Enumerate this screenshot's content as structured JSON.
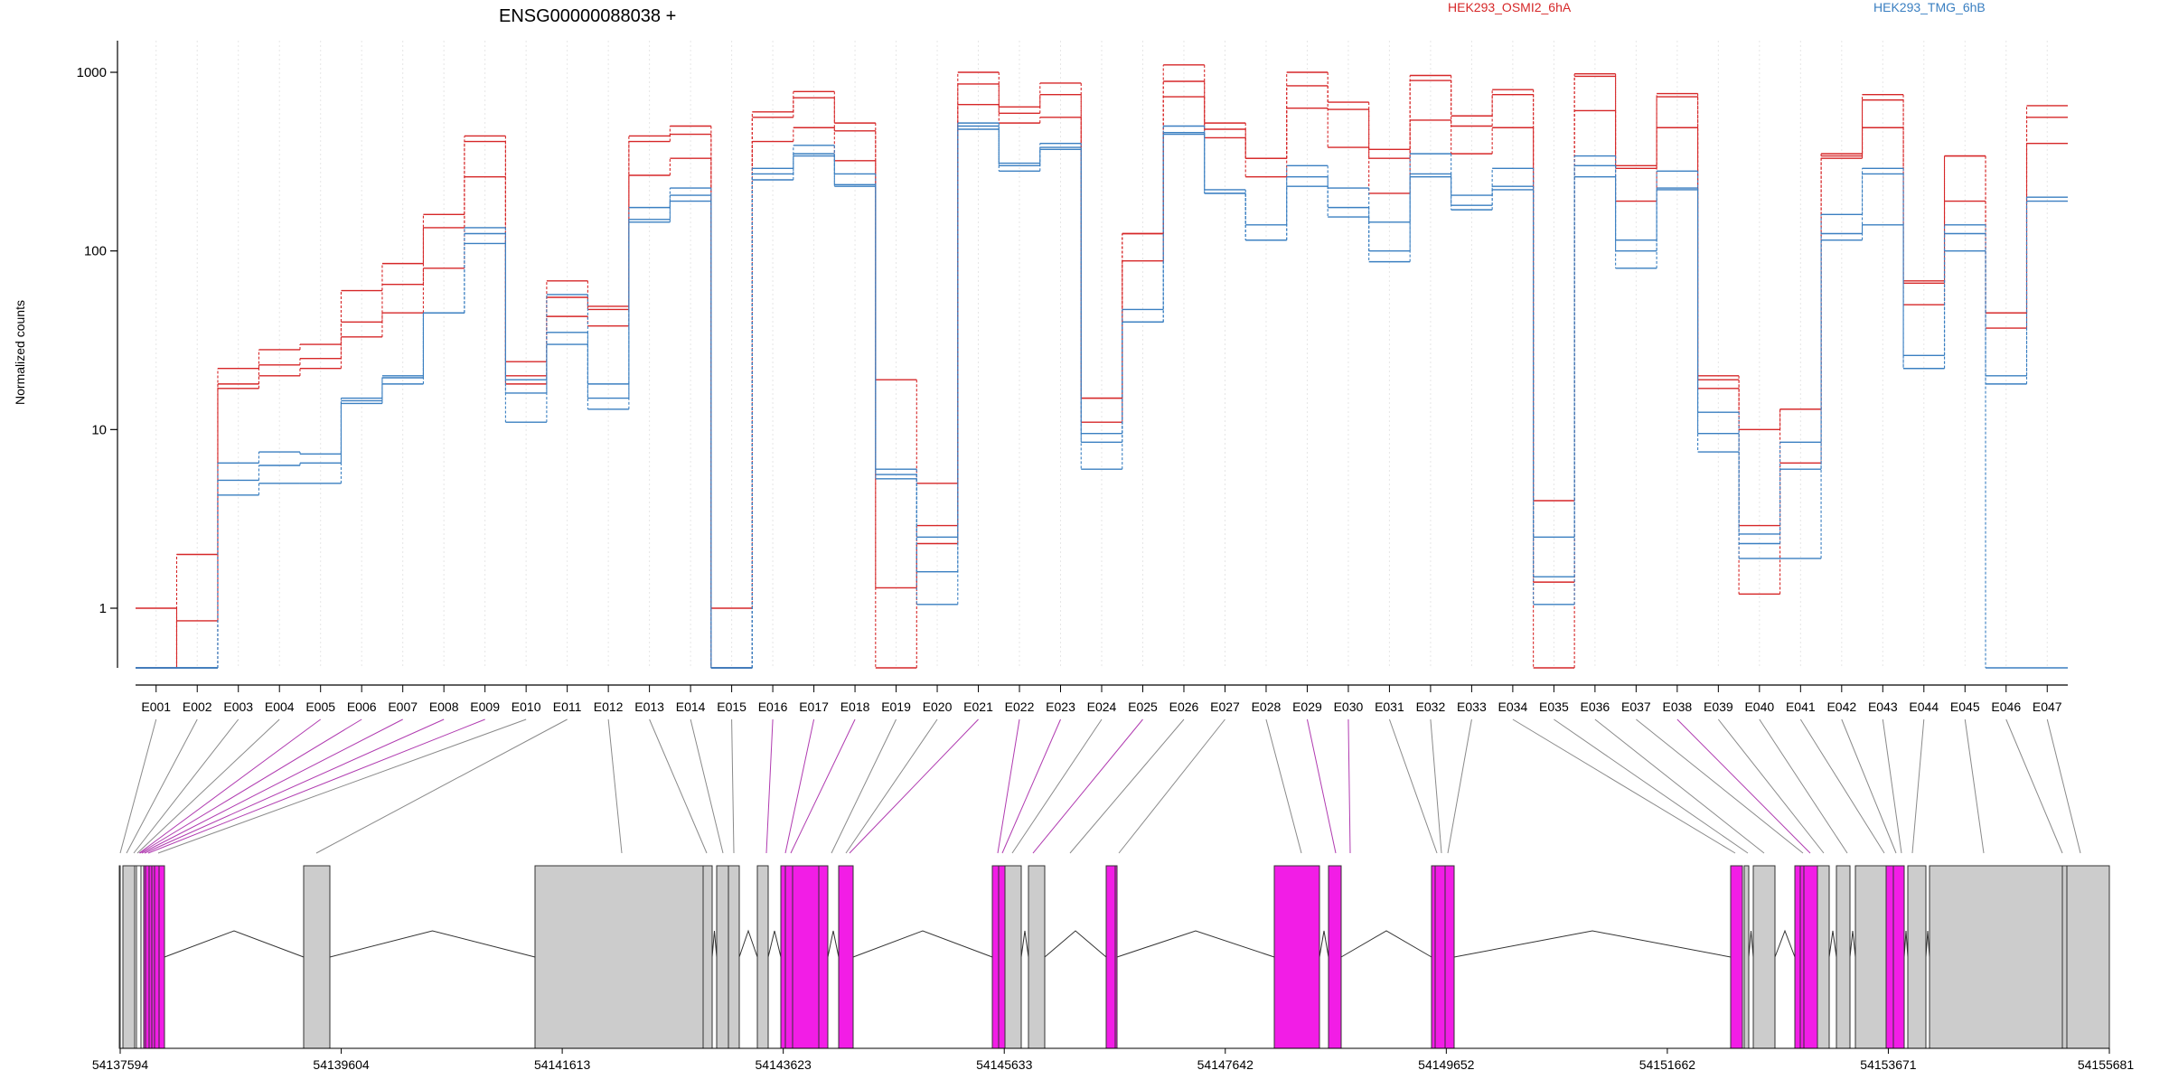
{
  "chart_data": {
    "type": "line",
    "title": "ENSG00000088038 +",
    "ylabel": "Normalized counts",
    "yscale": "log",
    "ylim": [
      0.5,
      1300
    ],
    "yticks": [
      "1",
      "10",
      "100",
      "1000"
    ],
    "grid": true,
    "legend_position": "top",
    "colors": {
      "HEK293_OSMI2_6hA": "#d62728",
      "HEK293_TMG_6hB": "#3a7fc1",
      "exon_highlight": "#f21de6",
      "exon_default": "#cccccc"
    },
    "exons": [
      "E001",
      "E002",
      "E003",
      "E004",
      "E005",
      "E006",
      "E007",
      "E008",
      "E009",
      "E010",
      "E011",
      "E012",
      "E013",
      "E014",
      "E015",
      "E016",
      "E017",
      "E018",
      "E019",
      "E020",
      "E021",
      "E022",
      "E023",
      "E024",
      "E025",
      "E026",
      "E027",
      "E028",
      "E029",
      "E030",
      "E031",
      "E032",
      "E033",
      "E034",
      "E035",
      "E036",
      "E037",
      "E038",
      "E039",
      "E040",
      "E041",
      "E042",
      "E043",
      "E044",
      "E045",
      "E046",
      "E047"
    ],
    "series": [
      {
        "name": "HEK293_OSMI2_6hA",
        "values": [
          1.0,
          0.5,
          17,
          20,
          22,
          33,
          45,
          80,
          260,
          18,
          43,
          38,
          265,
          330,
          1.0,
          410,
          490,
          320,
          1.3,
          2.3,
          660,
          520,
          560,
          11,
          88,
          730,
          430,
          260,
          630,
          380,
          210,
          540,
          350,
          490,
          1.4,
          610,
          190,
          490,
          17,
          1.2,
          6.5,
          330,
          490,
          50,
          190,
          37,
          400
        ]
      },
      {
        "name": "HEK293_OSMI2_6hA",
        "values": [
          0.5,
          0.85,
          18,
          23,
          25,
          40,
          65,
          135,
          410,
          20,
          55,
          47,
          410,
          450,
          0.5,
          560,
          720,
          470,
          0.5,
          2.9,
          860,
          590,
          750,
          15,
          125,
          890,
          480,
          330,
          840,
          620,
          330,
          900,
          500,
          750,
          0.5,
          950,
          290,
          730,
          19,
          2.9,
          13,
          340,
          700,
          66,
          340,
          45,
          560
        ]
      },
      {
        "name": "HEK293_OSMI2_6hA",
        "values": [
          0.5,
          2.0,
          22,
          28,
          30,
          60,
          85,
          160,
          440,
          24,
          68,
          49,
          440,
          500,
          0.5,
          600,
          780,
          520,
          19,
          5.0,
          1000,
          640,
          870,
          15,
          125,
          1100,
          520,
          330,
          1000,
          680,
          370,
          960,
          570,
          800,
          4.0,
          980,
          300,
          760,
          20,
          10.0,
          13,
          350,
          750,
          68,
          340,
          45,
          650
        ]
      },
      {
        "name": "HEK293_TMG_6hB",
        "values": [
          0.5,
          0.5,
          4.3,
          5.0,
          5.0,
          14,
          18,
          45,
          110,
          11,
          30,
          13,
          145,
          190,
          0.5,
          250,
          340,
          230,
          5.3,
          1.05,
          480,
          280,
          370,
          6.0,
          40,
          450,
          210,
          115,
          230,
          155,
          87,
          260,
          170,
          220,
          1.05,
          260,
          80,
          220,
          7.5,
          1.9,
          1.9,
          115,
          140,
          22,
          100,
          0.5,
          0.5
        ]
      },
      {
        "name": "HEK293_TMG_6hB",
        "values": [
          0.5,
          0.5,
          5.2,
          6.3,
          6.5,
          14.5,
          19.5,
          45,
          125,
          16,
          35,
          15,
          150,
          205,
          0.5,
          270,
          350,
          235,
          5.6,
          1.6,
          500,
          300,
          380,
          8.5,
          40,
          460,
          210,
          115,
          260,
          175,
          100,
          270,
          180,
          230,
          1.5,
          300,
          100,
          225,
          9.5,
          2.3,
          6.0,
          125,
          270,
          22,
          125,
          18,
          190
        ]
      },
      {
        "name": "HEK293_TMG_6hB",
        "values": [
          0.5,
          0.5,
          6.5,
          7.5,
          7.3,
          15,
          20,
          45,
          135,
          19,
          57,
          18,
          175,
          225,
          0.5,
          290,
          390,
          270,
          6.0,
          2.5,
          520,
          310,
          400,
          9.5,
          47,
          500,
          220,
          140,
          300,
          225,
          145,
          350,
          205,
          290,
          2.5,
          340,
          115,
          280,
          12.5,
          2.6,
          8.5,
          160,
          290,
          26,
          140,
          20,
          200
        ]
      }
    ],
    "genomic_ticks": [
      "54137594",
      "54139604",
      "54141613",
      "54143623",
      "54145633",
      "54147642",
      "54149652",
      "54151662",
      "54153671",
      "54155681"
    ]
  }
}
